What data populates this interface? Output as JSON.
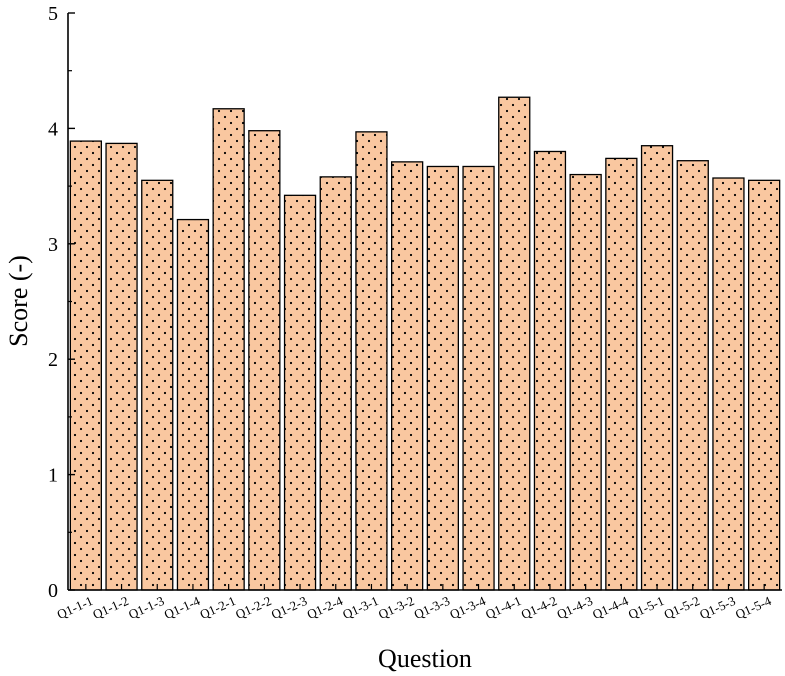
{
  "chart_data": {
    "type": "bar",
    "title": "",
    "xlabel": "Question",
    "ylabel": "Score (-)",
    "ylim": [
      0,
      5
    ],
    "yticks": [
      "0",
      "1",
      "2",
      "3",
      "4",
      "5"
    ],
    "grid": false,
    "legend": "none",
    "bar_fill": "#f9c7a0",
    "bar_pattern": "dotted",
    "bar_stroke": "#000000",
    "categories": [
      "Q1-1-1",
      "Q1-1-2",
      "Q1-1-3",
      "Q1-1-4",
      "Q1-2-1",
      "Q1-2-2",
      "Q1-2-3",
      "Q1-2-4",
      "Q1-3-1",
      "Q1-3-2",
      "Q1-3-3",
      "Q1-3-4",
      "Q1-4-1",
      "Q1-4-2",
      "Q1-4-3",
      "Q1-4-4",
      "Q1-5-1",
      "Q1-5-2",
      "Q1-5-3",
      "Q1-5-4"
    ],
    "values": [
      3.89,
      3.87,
      3.55,
      3.21,
      4.17,
      3.98,
      3.42,
      3.58,
      3.97,
      3.71,
      3.67,
      3.67,
      4.27,
      3.8,
      3.6,
      3.74,
      3.85,
      3.72,
      3.57,
      3.55
    ]
  }
}
